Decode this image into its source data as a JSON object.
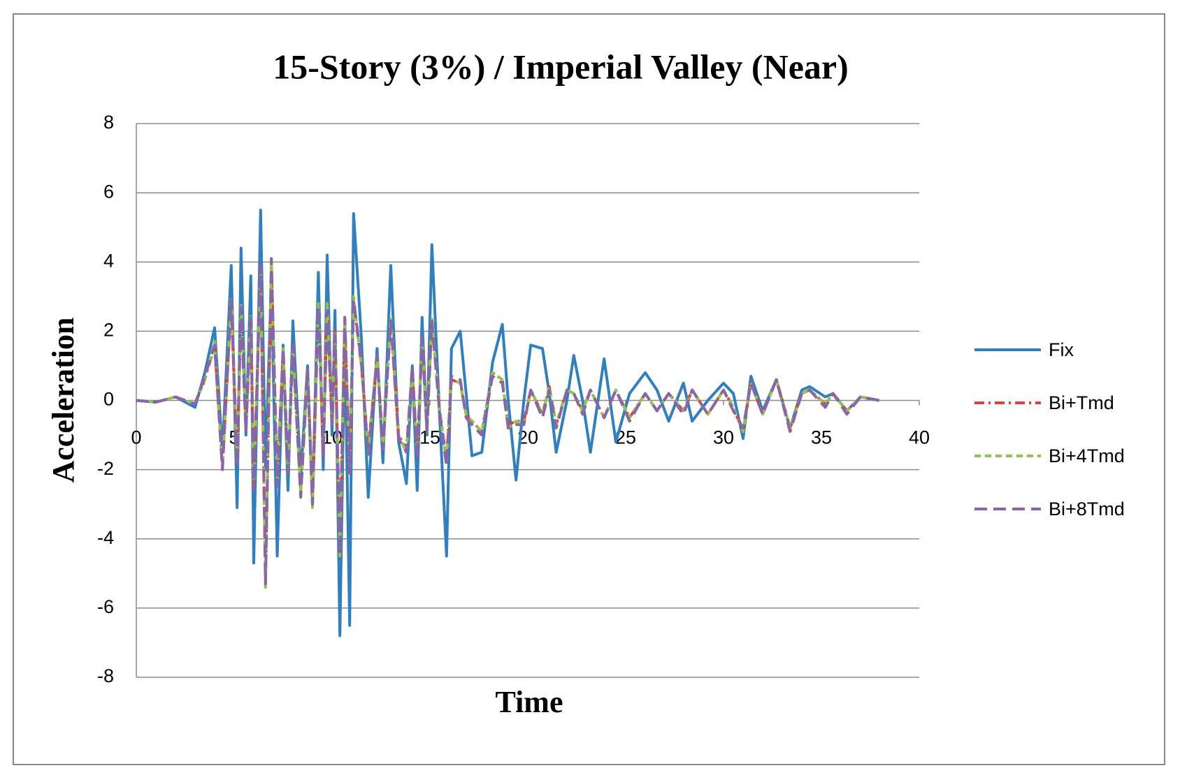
{
  "chart_data": {
    "type": "line",
    "title": "15-Story (3%) / Imperial  Valley (Near)",
    "x_label": "Time",
    "y_label": "Acceleration",
    "x": [
      0,
      1,
      2,
      3,
      3.5,
      4.0,
      4.4,
      4.85,
      5.15,
      5.35,
      5.6,
      5.85,
      6.0,
      6.35,
      6.6,
      6.9,
      7.2,
      7.5,
      7.75,
      8.0,
      8.4,
      8.75,
      9.0,
      9.3,
      9.55,
      9.75,
      10.0,
      10.15,
      10.4,
      10.65,
      10.9,
      11.1,
      11.5,
      11.85,
      12.3,
      12.6,
      13.0,
      13.4,
      13.8,
      14.1,
      14.35,
      14.6,
      14.85,
      15.1,
      15.5,
      15.85,
      16.1,
      16.55,
      16.85,
      17.15,
      17.65,
      18.2,
      18.7,
      19.0,
      19.4,
      19.8,
      20.15,
      20.75,
      21.1,
      21.45,
      22.0,
      22.35,
      22.8,
      23.2,
      23.9,
      24.5,
      25.2,
      26.0,
      26.6,
      27.2,
      27.95,
      28.4,
      29.2,
      30.0,
      30.5,
      31.0,
      31.4,
      32.0,
      32.7,
      33.4,
      34.0,
      34.4,
      35.2,
      35.6,
      36.3,
      37.0,
      37.95
    ],
    "series": [
      {
        "name": "Fix",
        "color": "#2f7fc1",
        "dash": "solid",
        "values": [
          0,
          -0.05,
          0.1,
          -0.2,
          0.8,
          2.1,
          -1.5,
          3.9,
          -3.1,
          4.4,
          -1.0,
          3.6,
          -4.7,
          5.5,
          -2.0,
          3.5,
          -4.5,
          1.6,
          -2.6,
          2.3,
          -2.2,
          1.0,
          -3.0,
          3.7,
          -2.0,
          4.2,
          -1.0,
          2.6,
          -6.8,
          2.0,
          -6.5,
          5.4,
          1.8,
          -2.8,
          1.5,
          -1.8,
          3.9,
          -1.2,
          -2.4,
          1.0,
          -2.6,
          2.4,
          -1.0,
          4.5,
          -0.5,
          -4.5,
          1.5,
          2.0,
          0.2,
          -1.6,
          -1.5,
          1.1,
          2.2,
          0.0,
          -2.3,
          0.0,
          1.6,
          1.5,
          0.2,
          -1.5,
          0.0,
          1.3,
          0.0,
          -1.5,
          1.2,
          -1.2,
          0.2,
          0.8,
          0.3,
          -0.6,
          0.5,
          -0.6,
          0.0,
          0.5,
          0.2,
          -1.1,
          0.7,
          -0.3,
          0.6,
          -0.8,
          0.3,
          0.4,
          0.1,
          0.2,
          -0.3,
          0.1,
          0
        ]
      },
      {
        "name": "Bi+Tmd",
        "color": "#e0413a",
        "dash": "dashdot",
        "values": [
          0,
          -0.05,
          0.1,
          -0.1,
          0.6,
          1.6,
          -1.9,
          2.8,
          -1.7,
          2.7,
          -0.8,
          2.4,
          -2.4,
          3.7,
          -5.2,
          3.9,
          -2.3,
          1.4,
          -1.9,
          1.5,
          -2.6,
          0.8,
          -3.0,
          2.7,
          -1.4,
          2.7,
          -0.6,
          2.0,
          -4.4,
          2.3,
          -1.9,
          2.9,
          1.0,
          -1.4,
          1.2,
          -1.3,
          2.3,
          -1.0,
          -1.4,
          0.9,
          -1.5,
          1.7,
          -0.8,
          2.3,
          -0.3,
          -1.7,
          0.6,
          0.5,
          -0.4,
          -0.6,
          -0.9,
          0.8,
          0.6,
          -0.7,
          -0.6,
          -0.6,
          0.3,
          -0.4,
          0.4,
          -0.7,
          0.3,
          0.2,
          -0.3,
          0.3,
          -0.5,
          0.3,
          -0.5,
          0.2,
          -0.3,
          0.2,
          -0.3,
          0.3,
          -0.4,
          0.3,
          -0.2,
          -0.9,
          0.5,
          -0.4,
          0.6,
          -0.8,
          0.2,
          0.3,
          -0.1,
          0.2,
          -0.3,
          0.1,
          0
        ]
      },
      {
        "name": "Bi+4Tmd",
        "color": "#92c44a",
        "dash": "dashed",
        "values": [
          0,
          -0.05,
          0.1,
          -0.1,
          0.6,
          1.7,
          -2.0,
          3.0,
          -1.8,
          2.8,
          -0.8,
          2.5,
          -2.5,
          3.8,
          -5.4,
          4.0,
          -2.4,
          1.5,
          -2.0,
          1.5,
          -2.7,
          0.8,
          -3.1,
          2.8,
          -1.5,
          2.8,
          -0.6,
          2.0,
          -4.5,
          2.4,
          -2.0,
          3.0,
          1.0,
          -1.5,
          1.3,
          -1.4,
          2.4,
          -1.0,
          -1.5,
          0.9,
          -1.6,
          1.8,
          -0.8,
          2.4,
          -0.3,
          -1.8,
          0.6,
          0.5,
          -0.4,
          -0.6,
          -0.9,
          0.8,
          0.6,
          -0.8,
          -0.6,
          -0.7,
          0.3,
          -0.4,
          0.4,
          -0.7,
          0.3,
          0.2,
          -0.3,
          0.3,
          -0.5,
          0.3,
          -0.5,
          0.2,
          -0.3,
          0.2,
          -0.3,
          0.3,
          -0.4,
          0.3,
          -0.2,
          -0.9,
          0.5,
          -0.4,
          0.6,
          -0.8,
          0.2,
          0.3,
          -0.1,
          0.2,
          -0.3,
          0.1,
          0
        ]
      },
      {
        "name": "Bi+8Tmd",
        "color": "#8a65aa",
        "dash": "longdash",
        "values": [
          0,
          -0.05,
          0.1,
          -0.1,
          0.7,
          1.6,
          -2.0,
          2.9,
          -1.9,
          2.7,
          -0.9,
          2.4,
          -2.6,
          3.9,
          -5.3,
          4.1,
          -2.5,
          1.5,
          -2.1,
          1.6,
          -2.8,
          0.9,
          -3.0,
          2.7,
          -1.6,
          2.6,
          -0.7,
          1.9,
          -4.4,
          2.4,
          -2.1,
          2.9,
          1.1,
          -1.6,
          1.3,
          -1.4,
          2.3,
          -1.1,
          -1.5,
          1.0,
          -1.7,
          1.8,
          -0.9,
          2.3,
          -0.4,
          -1.9,
          0.7,
          0.6,
          -0.5,
          -0.7,
          -1.0,
          0.7,
          0.5,
          -0.8,
          -0.7,
          -0.7,
          0.3,
          -0.5,
          0.3,
          -0.8,
          0.3,
          0.2,
          -0.4,
          0.3,
          -0.5,
          0.3,
          -0.6,
          0.2,
          -0.3,
          0.2,
          -0.4,
          0.3,
          -0.4,
          0.3,
          -0.3,
          -0.8,
          0.5,
          -0.4,
          0.6,
          -0.9,
          0.2,
          0.3,
          -0.2,
          0.2,
          -0.4,
          0.1,
          0
        ]
      }
    ],
    "xlim": [
      0,
      40
    ],
    "xticks": [
      0,
      5,
      10,
      15,
      20,
      25,
      30,
      35,
      40
    ],
    "ylim": [
      -8,
      8
    ],
    "yticks": [
      -8,
      -6,
      -4,
      -2,
      0,
      2,
      4,
      6,
      8
    ],
    "grid": true,
    "legend": "right"
  }
}
